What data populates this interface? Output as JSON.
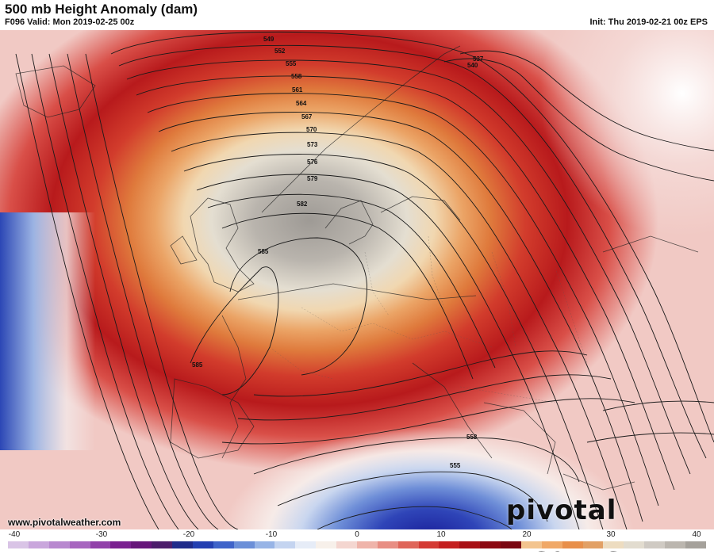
{
  "header": {
    "title": "500 mb Height Anomaly (dam)",
    "valid": "F096 Valid: Mon 2019-02-25 00z",
    "init": "Init: Thu 2019-02-21 00z EPS"
  },
  "map": {
    "contour_labels": [
      "549",
      "552",
      "555",
      "558",
      "561",
      "564",
      "567",
      "570",
      "573",
      "576",
      "579",
      "582",
      "585",
      "585",
      "537",
      "540",
      "558",
      "555"
    ],
    "colors": {
      "deep_red": "#a80f14",
      "red": "#d8282a",
      "orange": "#e0843a",
      "cream": "#efe7d6",
      "gray_center": "#aaa59f",
      "blue": "#3f5ec0",
      "deep_blue": "#1f2fa8"
    }
  },
  "branding": {
    "website": "www.pivotalweather.com",
    "logo": "pivotal weather"
  },
  "colorbar": {
    "ticks": [
      "-40",
      "-30",
      "-20",
      "-10",
      "0",
      "10",
      "20",
      "30",
      "40"
    ],
    "colors": [
      "#d9c4e6",
      "#c9a6dc",
      "#b888cf",
      "#a765bf",
      "#9140a9",
      "#7a2090",
      "#66167a",
      "#4c1d6b",
      "#1f2b8a",
      "#233fb1",
      "#3e63c9",
      "#6b8fd8",
      "#97b4e6",
      "#c4d4f0",
      "#e6ecf7",
      "#f7f0ea",
      "#f4d6d0",
      "#efb4aa",
      "#e88e83",
      "#df6559",
      "#d43a33",
      "#c41f1f",
      "#a80f14",
      "#8c0810",
      "#7a0610",
      "#f3c48e",
      "#f0a867",
      "#e88f4a",
      "#e2a065",
      "#eddcc0",
      "#e2dccf",
      "#cfcac3",
      "#bbb6af",
      "#a5a19b"
    ]
  }
}
